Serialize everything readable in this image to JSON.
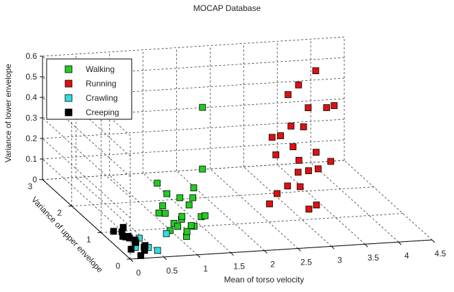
{
  "chart_data": {
    "type": "scatter3d",
    "title": "MOCAP Database",
    "x_label": "Mean of torso velocity",
    "y_label": "Variance of upper envelope",
    "z_label": "Variance of lower envelope",
    "xlim": [
      0,
      4.5
    ],
    "xticks": [
      0,
      0.5,
      1,
      1.5,
      2,
      2.5,
      3,
      3.5,
      4,
      4.5
    ],
    "ylim": [
      0,
      3
    ],
    "yticks": [
      0,
      1,
      2,
      3
    ],
    "zlim": [
      0,
      0.6
    ],
    "zticks": [
      0,
      0.1,
      0.2,
      0.3,
      0.4,
      0.5,
      0.6
    ],
    "grid": true,
    "legend": "upper left",
    "series": [
      {
        "name": "Walking",
        "color": "#22cc22",
        "x": [
          0.9,
          1.0,
          1.1,
          1.2,
          1.0,
          1.1,
          1.3,
          0.95,
          1.05,
          1.15,
          1.25,
          1.4,
          1.5,
          1.45,
          1.35,
          1.55,
          1.6,
          1.2,
          1.3,
          1.6,
          1.6,
          1.1
        ],
        "y": [
          0.7,
          0.8,
          0.9,
          1.0,
          1.1,
          0.6,
          0.8,
          1.2,
          1.3,
          0.7,
          1.1,
          1.2,
          1.3,
          0.9,
          1.4,
          1.0,
          1.5,
          1.5,
          0.9,
          1.2,
          1.2,
          1.6
        ],
        "z": [
          0.03,
          0.05,
          0.02,
          0.04,
          0.06,
          0.01,
          0.03,
          0.05,
          0.07,
          0.02,
          0.04,
          0.08,
          0.1,
          0.06,
          0.09,
          0.05,
          0.12,
          0.1,
          0.02,
          0.25,
          0.55,
          0.14
        ]
      },
      {
        "name": "Running",
        "color": "#dd1111",
        "x": [
          2.6,
          2.8,
          3.0,
          3.1,
          3.2,
          3.3,
          3.0,
          3.4,
          3.5,
          3.3,
          3.2,
          3.6,
          3.4,
          3.5,
          3.7,
          3.8,
          3.3,
          3.1,
          2.9,
          3.6,
          4.0,
          3.9,
          3.4,
          3.6
        ],
        "y": [
          1.2,
          1.4,
          1.5,
          1.3,
          1.6,
          1.8,
          1.9,
          1.7,
          1.6,
          2.0,
          2.2,
          1.9,
          2.3,
          2.1,
          2.4,
          2.0,
          1.2,
          1.0,
          1.8,
          2.5,
          2.2,
          2.6,
          2.4,
          1.4
        ],
        "z": [
          0.06,
          0.08,
          0.1,
          0.12,
          0.15,
          0.18,
          0.2,
          0.14,
          0.16,
          0.22,
          0.25,
          0.2,
          0.28,
          0.3,
          0.35,
          0.4,
          0.04,
          0.05,
          0.3,
          0.45,
          0.38,
          0.5,
          0.42,
          0.22
        ]
      },
      {
        "name": "Crawling",
        "color": "#33dddd",
        "x": [
          0.3,
          0.4,
          0.35,
          0.25,
          0.45,
          0.2,
          0.8
        ],
        "y": [
          0.2,
          0.3,
          0.5,
          0.4,
          0.1,
          0.3,
          0.6
        ],
        "z": [
          0.02,
          0.01,
          0.03,
          0.0,
          0.02,
          0.04,
          0.03
        ]
      },
      {
        "name": "Creeping",
        "color": "#000000",
        "x": [
          0.1,
          0.2,
          0.3,
          0.15,
          0.25,
          0.05,
          0.35,
          0.2,
          0.1,
          0.3,
          0.15,
          0.25,
          0.2,
          0.1
        ],
        "y": [
          0.2,
          0.3,
          0.5,
          0.6,
          0.1,
          0.4,
          0.3,
          0.7,
          0.8,
          0.2,
          0.5,
          0.6,
          0.1,
          0.3
        ],
        "z": [
          0.02,
          0.05,
          0.01,
          0.03,
          0.04,
          0.08,
          0.02,
          0.06,
          0.03,
          0.01,
          0.04,
          0.02,
          0.0,
          0.07
        ]
      }
    ]
  }
}
